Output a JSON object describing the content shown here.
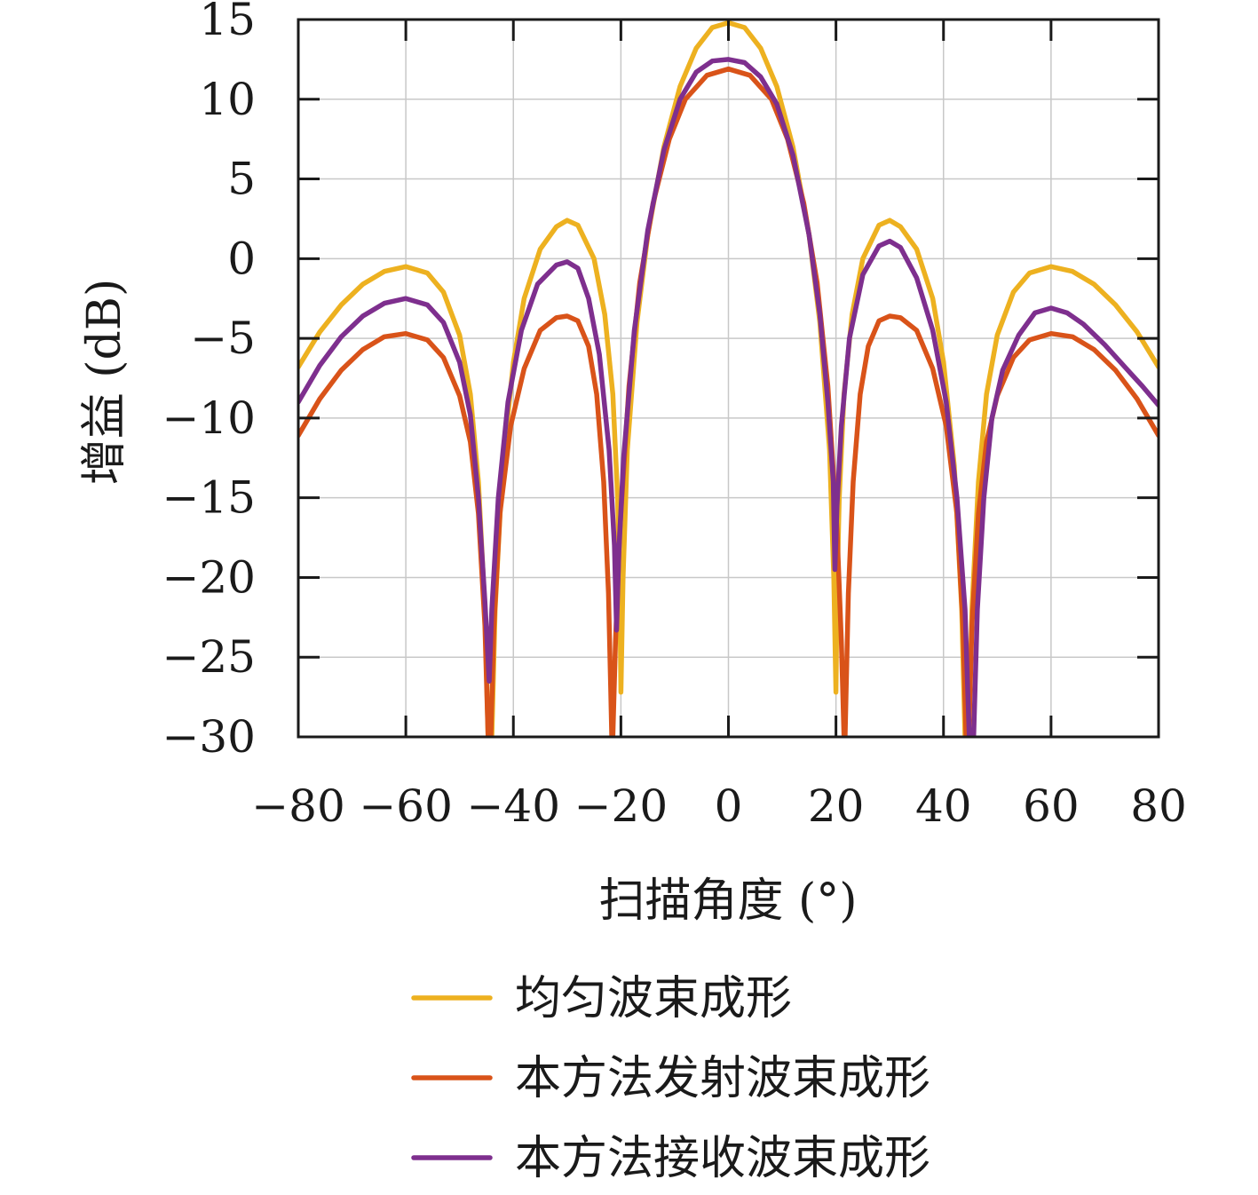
{
  "chart_data": {
    "type": "line",
    "xlabel": "扫描角度 (°)",
    "ylabel": "增益 (dB)",
    "xlim": [
      -80,
      80
    ],
    "ylim": [
      -30,
      15
    ],
    "x_ticks": [
      -80,
      -60,
      -40,
      -20,
      0,
      20,
      40,
      60,
      80
    ],
    "y_ticks": [
      15,
      10,
      5,
      0,
      -5,
      -10,
      -15,
      -20,
      -25,
      -30
    ],
    "x_tick_labels": [
      "−80",
      "−60",
      "−40",
      "−20",
      "0",
      "20",
      "40",
      "60",
      "80"
    ],
    "y_tick_labels": [
      "15",
      "10",
      "5",
      "0",
      "−5",
      "−10",
      "−15",
      "−20",
      "−25",
      "−30"
    ],
    "grid": true,
    "legend_position": "bottom",
    "series": [
      {
        "name": "均匀波束成形",
        "color": "#EDB120",
        "points": [
          [
            -80,
            -6.8
          ],
          [
            -76,
            -4.6
          ],
          [
            -72,
            -2.9
          ],
          [
            -68,
            -1.6
          ],
          [
            -64,
            -0.8
          ],
          [
            -60,
            -0.5
          ],
          [
            -56,
            -0.9
          ],
          [
            -53,
            -2.1
          ],
          [
            -50,
            -4.8
          ],
          [
            -48,
            -8.5
          ],
          [
            -46.5,
            -14
          ],
          [
            -45.3,
            -22
          ],
          [
            -44.7,
            -30
          ],
          [
            -44.0,
            -30
          ],
          [
            -43.4,
            -22
          ],
          [
            -42.0,
            -13
          ],
          [
            -40.0,
            -6.5
          ],
          [
            -38.0,
            -2.5
          ],
          [
            -35.0,
            0.6
          ],
          [
            -32.0,
            2.0
          ],
          [
            -30.0,
            2.4
          ],
          [
            -28.0,
            2.1
          ],
          [
            -25.0,
            0.0
          ],
          [
            -23.0,
            -3.5
          ],
          [
            -21.5,
            -8.5
          ],
          [
            -20.6,
            -15
          ],
          [
            -20.2,
            -21
          ],
          [
            -20.0,
            -27.2
          ],
          [
            -19.6,
            -20
          ],
          [
            -18.8,
            -12
          ],
          [
            -17.0,
            -4.0
          ],
          [
            -15.0,
            1.5
          ],
          [
            -12.0,
            7.0
          ],
          [
            -9.0,
            10.8
          ],
          [
            -6.0,
            13.2
          ],
          [
            -3.0,
            14.5
          ],
          [
            0,
            14.8
          ],
          [
            3.0,
            14.5
          ],
          [
            6.0,
            13.2
          ],
          [
            9.0,
            10.8
          ],
          [
            12.0,
            7.0
          ],
          [
            15.0,
            1.5
          ],
          [
            17.0,
            -4.0
          ],
          [
            18.8,
            -12
          ],
          [
            19.6,
            -20
          ],
          [
            20.0,
            -27.2
          ],
          [
            20.2,
            -21
          ],
          [
            20.6,
            -15
          ],
          [
            21.5,
            -8.5
          ],
          [
            23.0,
            -3.5
          ],
          [
            25.0,
            0.0
          ],
          [
            28.0,
            2.1
          ],
          [
            30.0,
            2.4
          ],
          [
            32.0,
            2.0
          ],
          [
            35.0,
            0.6
          ],
          [
            38.0,
            -2.5
          ],
          [
            40.0,
            -6.5
          ],
          [
            42.0,
            -13
          ],
          [
            43.4,
            -22
          ],
          [
            44.0,
            -30
          ],
          [
            44.7,
            -30
          ],
          [
            45.3,
            -22
          ],
          [
            46.5,
            -14
          ],
          [
            48.0,
            -8.5
          ],
          [
            50.0,
            -4.8
          ],
          [
            53.0,
            -2.1
          ],
          [
            56.0,
            -0.9
          ],
          [
            60.0,
            -0.5
          ],
          [
            64.0,
            -0.8
          ],
          [
            68.0,
            -1.6
          ],
          [
            72.0,
            -2.9
          ],
          [
            76.0,
            -4.6
          ],
          [
            80.0,
            -6.8
          ]
        ]
      },
      {
        "name": "本方法发射波束成形",
        "color": "#D95319",
        "points": [
          [
            -80,
            -11.1
          ],
          [
            -76,
            -8.8
          ],
          [
            -72,
            -7.0
          ],
          [
            -68,
            -5.7
          ],
          [
            -64,
            -4.9
          ],
          [
            -60,
            -4.7
          ],
          [
            -56,
            -5.1
          ],
          [
            -53,
            -6.2
          ],
          [
            -50,
            -8.6
          ],
          [
            -48,
            -11.5
          ],
          [
            -46.5,
            -16
          ],
          [
            -45.3,
            -23
          ],
          [
            -44.7,
            -30
          ],
          [
            -44.2,
            -30
          ],
          [
            -43.6,
            -23
          ],
          [
            -42.5,
            -16
          ],
          [
            -40.5,
            -10.5
          ],
          [
            -38.0,
            -6.9
          ],
          [
            -35.0,
            -4.5
          ],
          [
            -32.0,
            -3.7
          ],
          [
            -30.0,
            -3.6
          ],
          [
            -28.0,
            -3.9
          ],
          [
            -26.0,
            -5.5
          ],
          [
            -24.5,
            -8.5
          ],
          [
            -23.2,
            -14
          ],
          [
            -22.3,
            -21
          ],
          [
            -21.9,
            -27
          ],
          [
            -21.7,
            -30
          ],
          [
            -21.5,
            -30
          ],
          [
            -21.0,
            -24
          ],
          [
            -20.2,
            -17
          ],
          [
            -18.5,
            -8.0
          ],
          [
            -16.5,
            -1.5
          ],
          [
            -14.0,
            3.5
          ],
          [
            -11.0,
            7.5
          ],
          [
            -8.0,
            10.0
          ],
          [
            -4.0,
            11.5
          ],
          [
            0,
            11.9
          ],
          [
            4.0,
            11.5
          ],
          [
            8.0,
            10.0
          ],
          [
            11.0,
            7.5
          ],
          [
            14.0,
            3.5
          ],
          [
            16.5,
            -1.5
          ],
          [
            18.5,
            -8.0
          ],
          [
            20.2,
            -17
          ],
          [
            21.0,
            -24
          ],
          [
            21.5,
            -30
          ],
          [
            21.7,
            -30
          ],
          [
            21.9,
            -27
          ],
          [
            22.3,
            -21
          ],
          [
            23.2,
            -14
          ],
          [
            24.5,
            -8.5
          ],
          [
            26.0,
            -5.5
          ],
          [
            28.0,
            -3.9
          ],
          [
            30.0,
            -3.6
          ],
          [
            32.0,
            -3.7
          ],
          [
            35.0,
            -4.5
          ],
          [
            38.0,
            -6.9
          ],
          [
            40.5,
            -10.5
          ],
          [
            42.5,
            -16
          ],
          [
            43.6,
            -23
          ],
          [
            44.2,
            -30
          ],
          [
            44.7,
            -30
          ],
          [
            45.3,
            -23
          ],
          [
            46.5,
            -16
          ],
          [
            48.0,
            -11.5
          ],
          [
            50.0,
            -8.6
          ],
          [
            53.0,
            -6.2
          ],
          [
            56.0,
            -5.1
          ],
          [
            60.0,
            -4.7
          ],
          [
            64.0,
            -4.9
          ],
          [
            68.0,
            -5.7
          ],
          [
            72.0,
            -7.0
          ],
          [
            76.0,
            -8.8
          ],
          [
            80.0,
            -11.1
          ]
        ]
      },
      {
        "name": "本方法接收波束成形",
        "color": "#7E2F8E",
        "points": [
          [
            -80,
            -9.0
          ],
          [
            -76,
            -6.7
          ],
          [
            -72,
            -4.9
          ],
          [
            -68,
            -3.6
          ],
          [
            -64,
            -2.8
          ],
          [
            -60,
            -2.5
          ],
          [
            -56,
            -2.9
          ],
          [
            -53,
            -4.0
          ],
          [
            -50,
            -6.5
          ],
          [
            -48,
            -9.8
          ],
          [
            -46.5,
            -15
          ],
          [
            -45.3,
            -21.5
          ],
          [
            -44.5,
            -26.5
          ],
          [
            -44.0,
            -22
          ],
          [
            -42.8,
            -15
          ],
          [
            -41.0,
            -9.0
          ],
          [
            -38.5,
            -4.5
          ],
          [
            -35.5,
            -1.6
          ],
          [
            -32.0,
            -0.4
          ],
          [
            -30.0,
            -0.2
          ],
          [
            -28.0,
            -0.6
          ],
          [
            -26.0,
            -2.5
          ],
          [
            -24.0,
            -6.0
          ],
          [
            -22.2,
            -12.0
          ],
          [
            -21.2,
            -18.0
          ],
          [
            -20.8,
            -23.3
          ],
          [
            -20.4,
            -18.5
          ],
          [
            -19.5,
            -12.5
          ],
          [
            -17.5,
            -4.5
          ],
          [
            -15.0,
            1.8
          ],
          [
            -12.0,
            6.8
          ],
          [
            -9.0,
            10.0
          ],
          [
            -6.0,
            11.7
          ],
          [
            -3.0,
            12.4
          ],
          [
            0,
            12.5
          ],
          [
            3.0,
            12.3
          ],
          [
            6.0,
            11.4
          ],
          [
            9.0,
            9.7
          ],
          [
            12.0,
            6.5
          ],
          [
            15.0,
            1.5
          ],
          [
            17.0,
            -3.5
          ],
          [
            18.5,
            -9.0
          ],
          [
            19.5,
            -14.0
          ],
          [
            19.8,
            -19.5
          ],
          [
            20.2,
            -15.5
          ],
          [
            21.0,
            -10.5
          ],
          [
            22.5,
            -5.0
          ],
          [
            25.0,
            -1.0
          ],
          [
            28.0,
            0.8
          ],
          [
            30.0,
            1.1
          ],
          [
            32.0,
            0.7
          ],
          [
            35.0,
            -1.2
          ],
          [
            38.0,
            -4.5
          ],
          [
            40.5,
            -9.0
          ],
          [
            42.5,
            -15
          ],
          [
            44.0,
            -22
          ],
          [
            44.8,
            -30
          ],
          [
            45.6,
            -30
          ],
          [
            46.3,
            -22
          ],
          [
            47.5,
            -15
          ],
          [
            49.0,
            -10.0
          ],
          [
            51.0,
            -7.0
          ],
          [
            54.0,
            -4.8
          ],
          [
            57.0,
            -3.4
          ],
          [
            60.0,
            -3.1
          ],
          [
            63.0,
            -3.4
          ],
          [
            66.0,
            -4.1
          ],
          [
            70.0,
            -5.4
          ],
          [
            74.0,
            -6.9
          ],
          [
            77.0,
            -8.0
          ],
          [
            80.0,
            -9.2
          ]
        ]
      }
    ]
  }
}
